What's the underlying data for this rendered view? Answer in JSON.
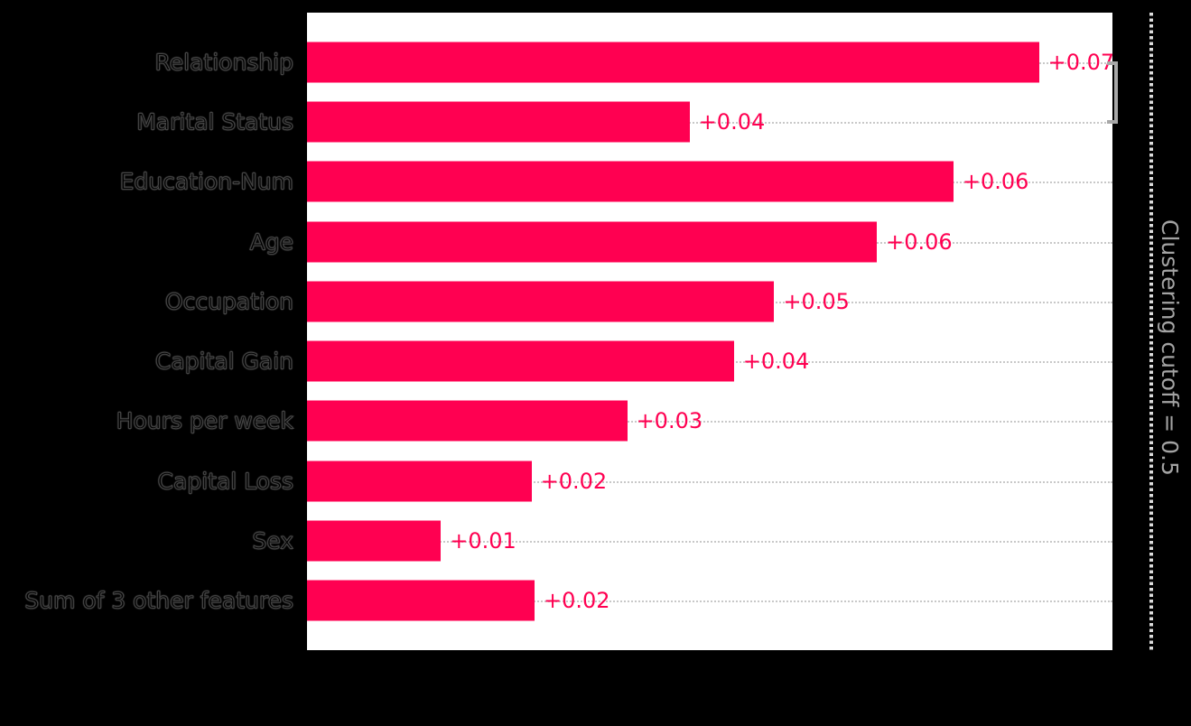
{
  "figure": {
    "background_color": "#000000",
    "plot_background_color": "#ffffff"
  },
  "chart_data": {
    "type": "bar",
    "orientation": "horizontal",
    "title": "",
    "xlabel": "",
    "ylabel": "",
    "categories": [
      "Relationship",
      "Marital Status",
      "Education-Num",
      "Age",
      "Occupation",
      "Capital Gain",
      "Hours per week",
      "Capital Loss",
      "Sex",
      "Sum of 3 other features"
    ],
    "values": [
      0.0727,
      0.038,
      0.0642,
      0.0566,
      0.0464,
      0.0424,
      0.0318,
      0.0223,
      0.0133,
      0.0226
    ],
    "value_labels": [
      "+0.07",
      "+0.04",
      "+0.06",
      "+0.06",
      "+0.05",
      "+0.04",
      "+0.03",
      "+0.02",
      "+0.01",
      "+0.02"
    ],
    "xlim": [
      0,
      0.08
    ],
    "bar_color": "#ff0051",
    "value_label_color": "#ff0051",
    "grid": "horizontal-dotted",
    "gridline_color": "#c8c8c8",
    "legend": "none",
    "annotations": {
      "cutoff_label": "Clustering cutoff = 0.5",
      "cutoff_value": 0.5,
      "cutoff_line_color": "#dcdcdc",
      "bracket_color": "#a8a8a8",
      "bracket_between": [
        "Relationship",
        "Marital Status"
      ]
    }
  }
}
